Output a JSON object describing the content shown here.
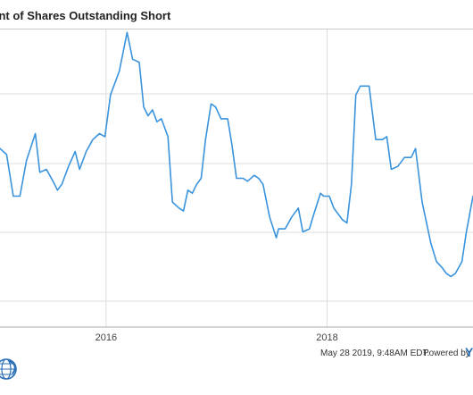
{
  "header": {
    "title": "cent of Shares Outstanding Short"
  },
  "footer": {
    "timestamp": "May 28 2019, 9:48AM EDT.",
    "powered_by": "Powered by",
    "brand_fragment": "Y",
    "logo_icon": "globe-logo-icon"
  },
  "colors": {
    "line": "#3a93dd",
    "grid": "#dcdcdc",
    "axis": "#a9a9a9",
    "title_border": "#c9c9c9",
    "brand": "#2b6fb6"
  },
  "chart_data": {
    "type": "line",
    "title": "cent of Shares Outstanding Short",
    "xlabel": "",
    "ylabel": "",
    "x_tick_labels": [
      "2016",
      "2018"
    ],
    "x_ticks": [
      2016.0,
      2018.0
    ],
    "xlim": [
      2015.04,
      2019.32
    ],
    "ylim": [
      0,
      1
    ],
    "grid": true,
    "legend": "none",
    "note_y": "y values are relative levels (0 = bottom of plot area, 1 = top); the y-axis tick labels are not visible in the crop",
    "series": [
      {
        "points": [
          [
            2015.04,
            0.6
          ],
          [
            2015.1,
            0.58
          ],
          [
            2015.16,
            0.44
          ],
          [
            2015.22,
            0.44
          ],
          [
            2015.28,
            0.56
          ],
          [
            2015.36,
            0.65
          ],
          [
            2015.4,
            0.52
          ],
          [
            2015.46,
            0.53
          ],
          [
            2015.52,
            0.49
          ],
          [
            2015.56,
            0.46
          ],
          [
            2015.6,
            0.48
          ],
          [
            2015.66,
            0.54
          ],
          [
            2015.72,
            0.59
          ],
          [
            2015.76,
            0.53
          ],
          [
            2015.82,
            0.59
          ],
          [
            2015.88,
            0.63
          ],
          [
            2015.94,
            0.65
          ],
          [
            2015.99,
            0.64
          ],
          [
            2016.04,
            0.78
          ],
          [
            2016.12,
            0.86
          ],
          [
            2016.19,
            0.99
          ],
          [
            2016.24,
            0.9
          ],
          [
            2016.3,
            0.89
          ],
          [
            2016.34,
            0.74
          ],
          [
            2016.38,
            0.71
          ],
          [
            2016.42,
            0.73
          ],
          [
            2016.46,
            0.69
          ],
          [
            2016.5,
            0.7
          ],
          [
            2016.56,
            0.64
          ],
          [
            2016.6,
            0.42
          ],
          [
            2016.66,
            0.4
          ],
          [
            2016.7,
            0.39
          ],
          [
            2016.74,
            0.46
          ],
          [
            2016.78,
            0.45
          ],
          [
            2016.82,
            0.48
          ],
          [
            2016.86,
            0.5
          ],
          [
            2016.9,
            0.63
          ],
          [
            2016.95,
            0.75
          ],
          [
            2016.99,
            0.74
          ],
          [
            2017.04,
            0.7
          ],
          [
            2017.1,
            0.7
          ],
          [
            2017.14,
            0.61
          ],
          [
            2017.18,
            0.5
          ],
          [
            2017.24,
            0.5
          ],
          [
            2017.28,
            0.49
          ],
          [
            2017.34,
            0.51
          ],
          [
            2017.38,
            0.5
          ],
          [
            2017.42,
            0.48
          ],
          [
            2017.48,
            0.37
          ],
          [
            2017.54,
            0.3
          ],
          [
            2017.56,
            0.33
          ],
          [
            2017.62,
            0.33
          ],
          [
            2017.68,
            0.37
          ],
          [
            2017.74,
            0.4
          ],
          [
            2017.78,
            0.32
          ],
          [
            2017.84,
            0.33
          ],
          [
            2017.88,
            0.38
          ],
          [
            2017.94,
            0.45
          ],
          [
            2017.97,
            0.44
          ],
          [
            2018.02,
            0.44
          ],
          [
            2018.06,
            0.4
          ],
          [
            2018.1,
            0.38
          ],
          [
            2018.14,
            0.36
          ],
          [
            2018.18,
            0.35
          ],
          [
            2018.22,
            0.48
          ],
          [
            2018.26,
            0.78
          ],
          [
            2018.3,
            0.81
          ],
          [
            2018.34,
            0.81
          ],
          [
            2018.38,
            0.81
          ],
          [
            2018.44,
            0.63
          ],
          [
            2018.5,
            0.63
          ],
          [
            2018.54,
            0.64
          ],
          [
            2018.58,
            0.53
          ],
          [
            2018.64,
            0.54
          ],
          [
            2018.7,
            0.57
          ],
          [
            2018.76,
            0.57
          ],
          [
            2018.8,
            0.6
          ],
          [
            2018.86,
            0.42
          ],
          [
            2018.94,
            0.28
          ],
          [
            2018.99,
            0.22
          ],
          [
            2019.04,
            0.2
          ],
          [
            2019.08,
            0.18
          ],
          [
            2019.12,
            0.17
          ],
          [
            2019.16,
            0.18
          ],
          [
            2019.22,
            0.22
          ],
          [
            2019.26,
            0.32
          ],
          [
            2019.32,
            0.44
          ]
        ]
      }
    ]
  }
}
